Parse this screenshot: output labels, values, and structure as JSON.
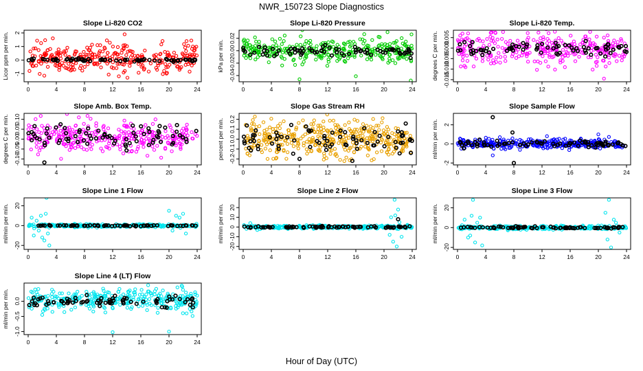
{
  "figure": {
    "title": "NWR_150723  Slope Diagnostics",
    "xlabel": "Hour of Day (UTC)"
  },
  "chart_data": [
    {
      "type": "scatter",
      "title": "Slope Li-820 CO2",
      "ylabel": "Licor ppm per min.",
      "xlim": [
        0,
        24
      ],
      "ylim": [
        -1.6,
        2.2
      ],
      "xticks": [
        0,
        4,
        8,
        12,
        16,
        20,
        24
      ],
      "yticks": [
        -1,
        0,
        1,
        2
      ],
      "ytick_labels": [
        "-1",
        "0",
        "1",
        "2"
      ],
      "series": [
        {
          "color": "#ff0000",
          "center": 0.1,
          "spread": 0.5,
          "n": 330,
          "outliers": [
            [
              13.7,
              1.9
            ],
            [
              14.1,
              -1.3
            ],
            [
              3.5,
              1.6
            ],
            [
              22.5,
              1.4
            ]
          ]
        },
        {
          "color": "#000000",
          "center": 0.0,
          "spread": 0.06,
          "n": 75
        }
      ]
    },
    {
      "type": "scatter",
      "title": "Slope Li-820 Pressure",
      "ylabel": "kPa per min.",
      "xlim": [
        0,
        24
      ],
      "ylim": [
        -0.05,
        0.033
      ],
      "xticks": [
        0,
        4,
        8,
        12,
        16,
        20,
        24
      ],
      "yticks": [
        -0.04,
        -0.02,
        0,
        0.02
      ],
      "ytick_labels": [
        "-0.04",
        "-0.02",
        "0.00",
        "0.02"
      ],
      "series": [
        {
          "color": "#00cc00",
          "center": 0.0,
          "spread": 0.009,
          "n": 330,
          "outliers": [
            [
              8,
              -0.046
            ],
            [
              16,
              -0.041
            ],
            [
              23.8,
              -0.048
            ],
            [
              20.5,
              0.03
            ]
          ]
        },
        {
          "color": "#000000",
          "center": 0.0,
          "spread": 0.004,
          "n": 75
        }
      ]
    },
    {
      "type": "scatter",
      "title": "Slope Li-820 Temp.",
      "ylabel": "degrees C per min.",
      "xlim": [
        0,
        24
      ],
      "ylim": [
        -0.016,
        0.0085
      ],
      "xticks": [
        0,
        4,
        8,
        12,
        16,
        20,
        24
      ],
      "yticks": [
        -0.015,
        -0.01,
        -0.005,
        0,
        0.005
      ],
      "ytick_labels": [
        "-0.015",
        "-0.010",
        "-0.005",
        "0.000",
        "0.005"
      ],
      "series": [
        {
          "color": "#ff00ff",
          "center": 0.0,
          "spread": 0.004,
          "n": 330,
          "outliers": [
            [
              20.8,
              -0.0145
            ],
            [
              1.5,
              0.007
            ]
          ]
        },
        {
          "color": "#000000",
          "center": 0.0,
          "spread": 0.0018,
          "n": 75
        }
      ]
    },
    {
      "type": "scatter",
      "title": "Slope Amb. Box Temp.",
      "ylabel": "degrees C per min.",
      "xlim": [
        0,
        24
      ],
      "ylim": [
        -0.13,
        0.13
      ],
      "xticks": [
        0,
        4,
        8,
        12,
        16,
        20,
        24
      ],
      "yticks": [
        -0.1,
        -0.05,
        0,
        0.05,
        0.1
      ],
      "ytick_labels": [
        "-0.10",
        "-0.05",
        "0.00",
        "0.05",
        "0.10"
      ],
      "series": [
        {
          "color": "#ff00ff",
          "center": 0.01,
          "spread": 0.04,
          "n": 330,
          "outliers": [
            [
              7.2,
              0.11
            ]
          ]
        },
        {
          "color": "#000000",
          "center": 0.01,
          "spread": 0.03,
          "n": 75,
          "outliers": [
            [
              2.3,
              -0.118
            ],
            [
              4.6,
              0.075
            ]
          ]
        }
      ]
    },
    {
      "type": "scatter",
      "title": "Slope Gas Stream RH",
      "ylabel": "percent per min.",
      "xlim": [
        0,
        24
      ],
      "ylim": [
        -0.26,
        0.26
      ],
      "xticks": [
        0,
        4,
        8,
        12,
        16,
        20,
        24
      ],
      "yticks": [
        -0.2,
        -0.1,
        0,
        0.1,
        0.2
      ],
      "ytick_labels": [
        "-0.2",
        "-0.1",
        "0.0",
        "0.1",
        "0.2"
      ],
      "series": [
        {
          "color": "#e8a000",
          "center": 0.0,
          "spread": 0.09,
          "n": 420
        },
        {
          "color": "#000000",
          "center": 0.0,
          "spread": 0.06,
          "n": 75,
          "outliers": [
            [
              8,
              -0.2
            ],
            [
              15.5,
              -0.22
            ]
          ]
        }
      ]
    },
    {
      "type": "scatter",
      "title": "Slope Sample Flow",
      "ylabel": "ml/min per min.",
      "xlim": [
        0,
        24
      ],
      "ylim": [
        -2.2,
        3.2
      ],
      "xticks": [
        0,
        4,
        8,
        12,
        16,
        20,
        24
      ],
      "yticks": [
        -2,
        0,
        2
      ],
      "ytick_labels": [
        "-2",
        "0",
        "2"
      ],
      "series": [
        {
          "color": "#0000ff",
          "center": 0.0,
          "spread": 0.25,
          "n": 330,
          "outliers": [
            [
              5,
              -1.2
            ],
            [
              20,
              1.0
            ]
          ]
        },
        {
          "color": "#000000",
          "center": 0.0,
          "spread": 0.2,
          "n": 75,
          "outliers": [
            [
              5,
              2.8
            ],
            [
              8,
              -2.0
            ],
            [
              7.8,
              1.2
            ]
          ]
        }
      ]
    },
    {
      "type": "scatter",
      "title": "Slope Line 1 Flow",
      "ylabel": "ml/min per min.",
      "xlim": [
        0,
        24
      ],
      "ylim": [
        -24,
        28
      ],
      "xticks": [
        0,
        4,
        8,
        12,
        16,
        20,
        24
      ],
      "yticks": [
        -20,
        0,
        20
      ],
      "ytick_labels": [
        "-20",
        "0",
        "20"
      ],
      "series": [
        {
          "color": "#00e5ee",
          "center": 0.0,
          "spread": 0.8,
          "n": 300,
          "outliers": [
            [
              0.5,
              8
            ],
            [
              0.8,
              -10
            ],
            [
              1.2,
              5
            ],
            [
              1.5,
              -5
            ],
            [
              2,
              -12
            ],
            [
              2.3,
              -15
            ],
            [
              2.5,
              12
            ],
            [
              2.6,
              28
            ],
            [
              2.8,
              -8
            ],
            [
              3.0,
              -20
            ],
            [
              1.8,
              10
            ],
            [
              20,
              15
            ],
            [
              20.5,
              -5
            ],
            [
              21,
              10
            ],
            [
              21.5,
              8
            ],
            [
              22,
              12
            ],
            [
              22.4,
              -8
            ]
          ]
        },
        {
          "color": "#000000",
          "center": 0.0,
          "spread": 0.3,
          "n": 75
        }
      ]
    },
    {
      "type": "scatter",
      "title": "Slope Line 2 Flow",
      "ylabel": "ml/min per min.",
      "xlim": [
        0,
        24
      ],
      "ylim": [
        -23,
        30
      ],
      "xticks": [
        0,
        4,
        8,
        12,
        16,
        20,
        24
      ],
      "yticks": [
        -20,
        -10,
        0,
        10,
        20
      ],
      "ytick_labels": [
        "-20",
        "-10",
        "0",
        "10",
        "20"
      ],
      "series": [
        {
          "color": "#00e5ee",
          "center": 0.0,
          "spread": 0.8,
          "n": 300,
          "outliers": [
            [
              21,
              10
            ],
            [
              21.3,
              -15
            ],
            [
              21.5,
              28
            ],
            [
              21.8,
              -20
            ],
            [
              22,
              18
            ],
            [
              22.2,
              5
            ],
            [
              20.8,
              -8
            ],
            [
              21.6,
              12
            ],
            [
              22.5,
              -10
            ],
            [
              1,
              4
            ],
            [
              2,
              -3
            ]
          ]
        },
        {
          "color": "#000000",
          "center": 0.0,
          "spread": 0.5,
          "n": 75,
          "outliers": [
            [
              22,
              8
            ]
          ]
        }
      ]
    },
    {
      "type": "scatter",
      "title": "Slope Line 3 Flow",
      "ylabel": "ml/min per min.",
      "xlim": [
        0,
        24
      ],
      "ylim": [
        -22,
        30
      ],
      "xticks": [
        0,
        4,
        8,
        12,
        16,
        20,
        24
      ],
      "yticks": [
        -20,
        0,
        20
      ],
      "ytick_labels": [
        "-20",
        "0",
        "20"
      ],
      "series": [
        {
          "color": "#00e5ee",
          "center": 0.0,
          "spread": 0.9,
          "n": 300,
          "outliers": [
            [
              1,
              8
            ],
            [
              1.5,
              -10
            ],
            [
              2,
              12
            ],
            [
              2.2,
              28
            ],
            [
              2.5,
              -15
            ],
            [
              2.8,
              5
            ],
            [
              3.2,
              10
            ],
            [
              3.5,
              -18
            ],
            [
              1.8,
              -8
            ],
            [
              21,
              15
            ],
            [
              21.3,
              -12
            ],
            [
              21.5,
              28
            ],
            [
              21.8,
              -20
            ],
            [
              22.2,
              8
            ],
            [
              22.5,
              5
            ],
            [
              23,
              -5
            ]
          ]
        },
        {
          "color": "#000000",
          "center": 0.0,
          "spread": 0.6,
          "n": 75
        }
      ]
    },
    {
      "type": "scatter",
      "title": "Slope Line 4 (LT) Flow",
      "ylabel": "ml/min per min.",
      "xlim": [
        0,
        24
      ],
      "ylim": [
        -1.1,
        0.6
      ],
      "xticks": [
        0,
        4,
        8,
        12,
        16,
        20,
        24
      ],
      "yticks": [
        -1,
        -0.5,
        0
      ],
      "ytick_labels": [
        "-1.0",
        "-0.5",
        "0.0"
      ],
      "series": [
        {
          "color": "#00e5ee",
          "center": 0.05,
          "spread": 0.18,
          "n": 330,
          "outliers": [
            [
              12,
              -1.02
            ],
            [
              20,
              -1.0
            ],
            [
              2,
              -0.45
            ],
            [
              22.5,
              -0.4
            ]
          ]
        },
        {
          "color": "#000000",
          "center": 0.0,
          "spread": 0.1,
          "n": 75
        }
      ]
    }
  ]
}
